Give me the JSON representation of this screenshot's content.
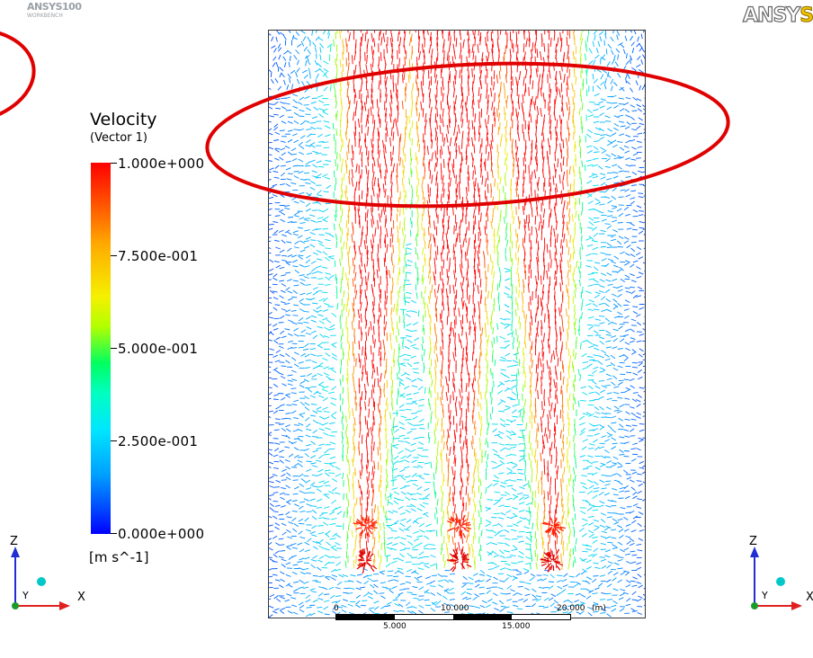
{
  "header": {
    "small_logo": "ANSYS",
    "small_logo_version": "100",
    "small_logo_sub": "WORKBENCH",
    "big_logo_part1": "ANSY",
    "big_logo_part2": "S"
  },
  "legend": {
    "title": "Velocity",
    "subtitle": "(Vector 1)",
    "ticks": [
      "1.000e+000",
      "7.500e-001",
      "5.000e-001",
      "2.500e-001",
      "0.000e+000"
    ],
    "units": "[m s^-1]",
    "range": [
      0,
      1
    ]
  },
  "scale": {
    "top_labels": [
      "0",
      "10.000",
      "20.000"
    ],
    "unit": "(m)",
    "bottom_labels": [
      "5.000",
      "15.000"
    ]
  },
  "axes": {
    "left": {
      "z_label": "Z",
      "x_label": "X",
      "y_label": "Y"
    },
    "right": {
      "z_label": "Z",
      "x_label": "X",
      "y_label": "Y"
    }
  },
  "colors": {
    "highlight_ellipse": "#e00000",
    "axis_z": "#1f2fd0",
    "axis_x": "#e02020",
    "axis_y": "#1a9a2a",
    "axis_sphere": "#00c8c8"
  }
}
